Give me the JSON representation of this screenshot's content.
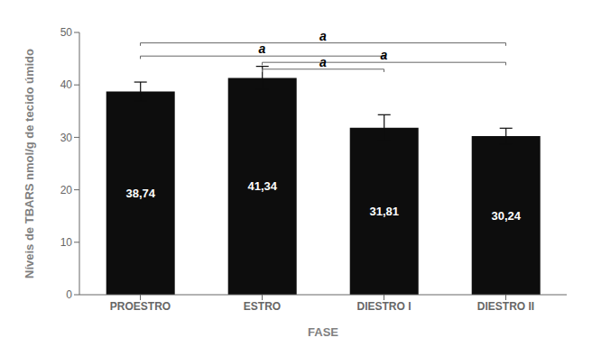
{
  "chart_data": {
    "type": "bar",
    "categories": [
      "PROESTRO",
      "ESTRO",
      "DIESTRO I",
      "DIESTRO II"
    ],
    "values": [
      38.74,
      41.34,
      31.81,
      30.24
    ],
    "errors": [
      1.8,
      2.2,
      2.5,
      1.5
    ],
    "value_labels": [
      "38,74",
      "41,34",
      "31,81",
      "30,24"
    ],
    "data_labels": true,
    "color": "#0d0d0d",
    "xlabel": "FASE",
    "ylabel": "Níveis de TBARS nmol/g de tecido úmido",
    "ylim": [
      0,
      50
    ],
    "yticks": [
      0,
      10,
      20,
      30,
      40,
      50
    ],
    "grid": false,
    "annotations": [
      {
        "text": "a",
        "x1": "PROESTRO",
        "x2": "DIESTRO II",
        "y": 48.0
      },
      {
        "text": "a",
        "x1": "PROESTRO",
        "x2": "DIESTRO I",
        "y": 45.5
      },
      {
        "text": "a",
        "x1": "ESTRO",
        "x2": "DIESTRO II",
        "y": 44.3
      },
      {
        "text": "a",
        "x1": "ESTRO",
        "x2": "DIESTRO I",
        "y": 43.0
      }
    ]
  }
}
